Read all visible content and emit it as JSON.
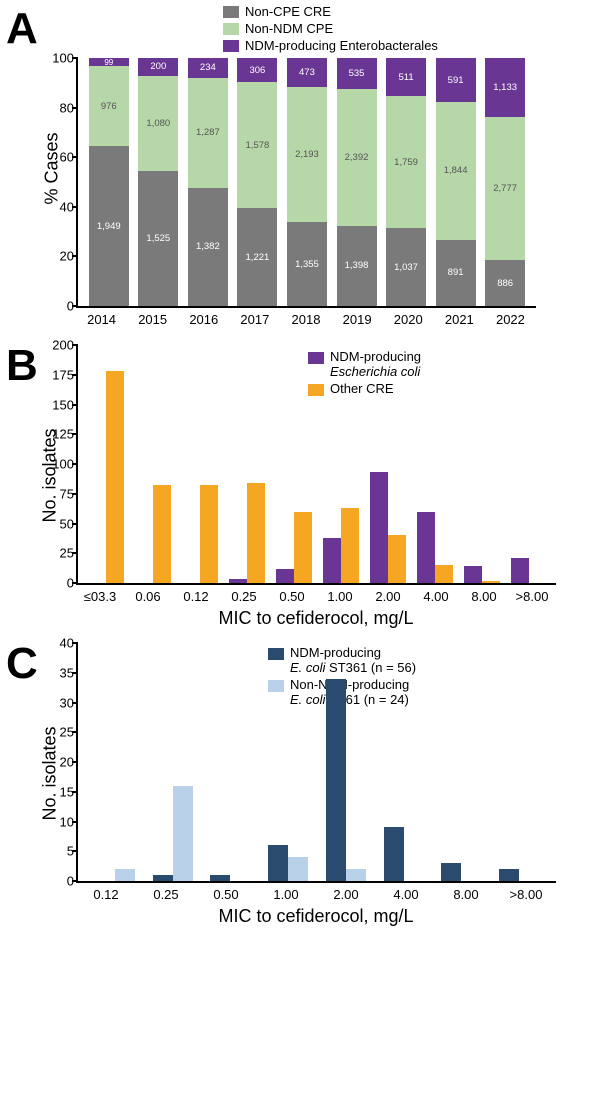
{
  "colors": {
    "gray": "#7a7a7a",
    "green": "#b6d7a8",
    "purple": "#6a3693",
    "orange": "#f5a623",
    "darkblue": "#2a4a6e",
    "lightblue": "#b8d0e8",
    "black": "#000000",
    "white": "#ffffff"
  },
  "panelA": {
    "label": "A",
    "type": "stacked-bar-100pct",
    "ylabel": "% Cases",
    "ylim": [
      0,
      100
    ],
    "ytick_step": 20,
    "categories": [
      "2014",
      "2015",
      "2016",
      "2017",
      "2018",
      "2019",
      "2020",
      "2021",
      "2022"
    ],
    "legend": [
      {
        "label": "Non-CPE CRE",
        "color": "#7a7a7a"
      },
      {
        "label": "Non-NDM CPE",
        "color": "#b6d7a8"
      },
      {
        "label": "NDM-producing Enterobacterales",
        "color": "#6a3693"
      }
    ],
    "series": [
      {
        "key": "noncpe",
        "color": "#7a7a7a",
        "values": [
          1949,
          1525,
          1382,
          1221,
          1355,
          1398,
          1037,
          891,
          886
        ],
        "text_color": "#ffffff"
      },
      {
        "key": "nonndm",
        "color": "#b6d7a8",
        "values": [
          976,
          1080,
          1287,
          1578,
          2193,
          2392,
          1759,
          1844,
          2777
        ],
        "text_color": "#555555"
      },
      {
        "key": "ndm",
        "color": "#6a3693",
        "values": [
          99,
          200,
          234,
          306,
          473,
          535,
          511,
          591,
          1133
        ],
        "text_color": "#ffffff"
      }
    ]
  },
  "panelB": {
    "label": "B",
    "type": "grouped-bar",
    "ylabel": "No. isolates",
    "xlabel": "MIC to cefiderocol, mg/L",
    "ylim": [
      0,
      200
    ],
    "ytick_step": 25,
    "categories": [
      "≤03.3",
      "0.06",
      "0.12",
      "0.25",
      "0.50",
      "1.00",
      "2.00",
      "4.00",
      "8.00",
      ">8.00"
    ],
    "legend": [
      {
        "label_html": "NDM-producing<br><span class='ital'>Escherichia coli</span>",
        "color": "#6a3693"
      },
      {
        "label_html": "Other CRE",
        "color": "#f5a623"
      }
    ],
    "series": [
      {
        "key": "ndm_ecoli",
        "color": "#6a3693",
        "values": [
          0,
          0,
          0,
          3,
          12,
          38,
          93,
          60,
          14,
          21
        ]
      },
      {
        "key": "other_cre",
        "color": "#f5a623",
        "values": [
          178,
          82,
          82,
          84,
          60,
          63,
          40,
          15,
          2,
          0
        ]
      }
    ]
  },
  "panelC": {
    "label": "C",
    "type": "grouped-bar",
    "ylabel": "No. isolates",
    "xlabel": "MIC to cefiderocol, mg/L",
    "ylim": [
      0,
      40
    ],
    "ytick_step": 5,
    "categories": [
      "0.12",
      "0.25",
      "0.50",
      "1.00",
      "2.00",
      "4.00",
      "8.00",
      ">8.00"
    ],
    "legend": [
      {
        "label_html": "NDM-producing<br><span class='ital'>E. coli</span> ST361 (n = 56)",
        "color": "#2a4a6e"
      },
      {
        "label_html": "Non-NDM-producing<br><span class='ital'>E. coli</span> ST61 (n = 24)",
        "color": "#b8d0e8"
      }
    ],
    "series": [
      {
        "key": "ndm_st361",
        "color": "#2a4a6e",
        "values": [
          0,
          1,
          1,
          6,
          34,
          9,
          3,
          2
        ]
      },
      {
        "key": "nonndm_st61",
        "color": "#b8d0e8",
        "values": [
          2,
          16,
          0,
          4,
          2,
          0,
          0,
          0
        ]
      }
    ]
  }
}
